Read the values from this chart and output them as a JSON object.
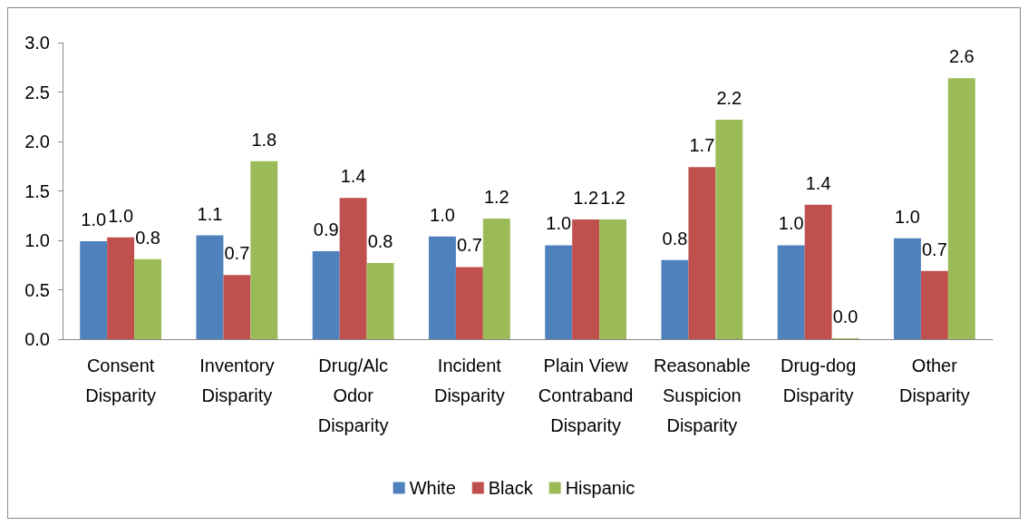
{
  "chart_data": {
    "type": "bar",
    "categories": [
      "Consent\nDisparity",
      "Inventory\nDisparity",
      "Drug/Alc\nOdor\nDisparity",
      "Incident\nDisparity",
      "Plain View\nContraband\nDisparity",
      "Reasonable\nSuspicion\nDisparity",
      "Drug-dog\nDisparity",
      "Other\nDisparity"
    ],
    "series": [
      {
        "name": "White",
        "color": "#4f81bd",
        "values": [
          0.99,
          1.05,
          0.89,
          1.04,
          0.95,
          0.8,
          0.95,
          1.02
        ],
        "value_labels": [
          "1.0",
          "1.1",
          "0.9",
          "1.0",
          "1.0",
          "0.8",
          "1.0",
          "1.0"
        ]
      },
      {
        "name": "Black",
        "color": "#c0504d",
        "values": [
          1.03,
          0.65,
          1.43,
          0.73,
          1.21,
          1.74,
          1.36,
          0.69
        ],
        "value_labels": [
          "1.0",
          "0.7",
          "1.4",
          "0.7",
          "1.2",
          "1.7",
          "1.4",
          "0.7"
        ]
      },
      {
        "name": "Hispanic",
        "color": "#9bbb59",
        "values": [
          0.81,
          1.8,
          0.77,
          1.22,
          1.21,
          2.22,
          0,
          2.64
        ],
        "value_labels": [
          "0.8",
          "1.8",
          "0.8",
          "1.2",
          "1.2",
          "2.2",
          "0.0",
          "2.6"
        ]
      }
    ],
    "ylim": [
      0,
      3
    ],
    "yticks": [
      {
        "value": 0,
        "label": "0.0"
      },
      0.5,
      {
        "value": 1,
        "label": "1.0"
      },
      1.5,
      {
        "value": 2,
        "label": "2.0"
      },
      2.5,
      {
        "value": 3,
        "label": "3.0"
      }
    ],
    "grid": false,
    "legend": "bottom"
  }
}
